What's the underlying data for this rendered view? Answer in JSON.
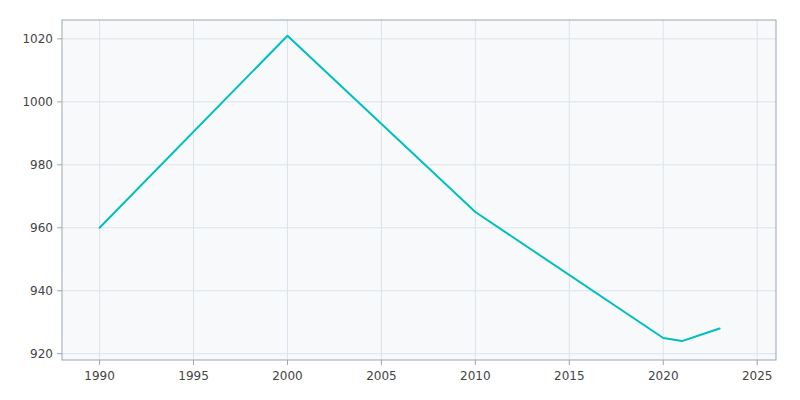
{
  "chart_data": {
    "type": "line",
    "x": [
      1990,
      2000,
      2010,
      2020,
      2021,
      2022,
      2023
    ],
    "values": [
      960,
      1021,
      965,
      925,
      924,
      926,
      928
    ],
    "color": "#00BFBF",
    "xlim": [
      1988,
      2026
    ],
    "ylim": [
      918,
      1026
    ],
    "xticks": [
      1990,
      1995,
      2000,
      2005,
      2010,
      2015,
      2020,
      2025
    ],
    "yticks": [
      920,
      940,
      960,
      980,
      1000,
      1020
    ],
    "grid": true
  }
}
